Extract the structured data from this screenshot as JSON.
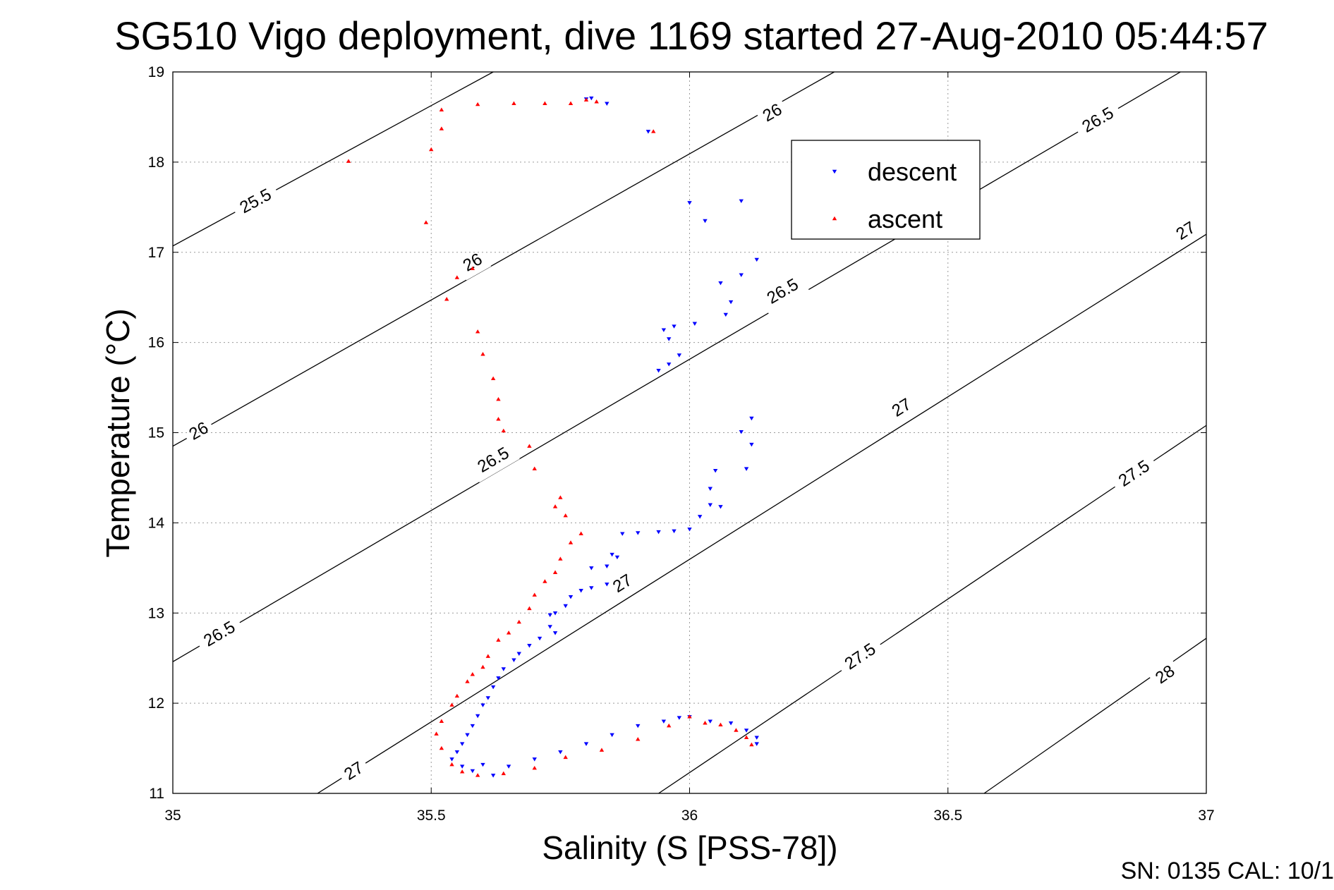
{
  "chart_data": {
    "type": "scatter",
    "title": "SG510 Vigo deployment, dive 1169 started 27-Aug-2010 05:44:57",
    "xlabel": "Salinity (S [PSS-78])",
    "ylabel": "Temperature (°C)",
    "xlim": [
      35,
      37
    ],
    "ylim": [
      11,
      19
    ],
    "xticks": [
      35,
      35.5,
      36,
      36.5,
      37
    ],
    "xtick_labels": [
      "35",
      "35.5",
      "36",
      "36.5",
      "37"
    ],
    "yticks": [
      11,
      12,
      13,
      14,
      15,
      16,
      17,
      18,
      19
    ],
    "ytick_labels": [
      "11",
      "12",
      "13",
      "14",
      "15",
      "16",
      "17",
      "18",
      "19"
    ],
    "grid": true,
    "legend_position": "top-right",
    "footer": "SN: 0135  CAL: 10/1",
    "colors": {
      "descent": "#0000ff",
      "ascent": "#ff0000",
      "contour": "#000000"
    },
    "series": [
      {
        "name": "descent",
        "marker": "triangle-down",
        "color": "#0000ff",
        "points": [
          [
            35.8,
            18.7
          ],
          [
            35.81,
            18.71
          ],
          [
            35.84,
            18.65
          ],
          [
            35.92,
            18.34
          ],
          [
            36.0,
            17.55
          ],
          [
            36.03,
            17.35
          ],
          [
            36.1,
            17.57
          ],
          [
            36.13,
            16.92
          ],
          [
            36.1,
            16.75
          ],
          [
            36.06,
            16.66
          ],
          [
            36.08,
            16.45
          ],
          [
            36.07,
            16.31
          ],
          [
            36.01,
            16.21
          ],
          [
            35.95,
            16.14
          ],
          [
            35.97,
            16.18
          ],
          [
            35.96,
            16.04
          ],
          [
            35.98,
            15.86
          ],
          [
            35.96,
            15.76
          ],
          [
            35.94,
            15.69
          ],
          [
            36.12,
            15.16
          ],
          [
            36.1,
            15.01
          ],
          [
            36.12,
            14.87
          ],
          [
            36.11,
            14.6
          ],
          [
            36.05,
            14.58
          ],
          [
            36.04,
            14.38
          ],
          [
            36.04,
            14.2
          ],
          [
            36.06,
            14.18
          ],
          [
            36.02,
            14.07
          ],
          [
            36.0,
            13.93
          ],
          [
            35.97,
            13.91
          ],
          [
            35.94,
            13.9
          ],
          [
            35.9,
            13.89
          ],
          [
            35.87,
            13.88
          ],
          [
            35.85,
            13.65
          ],
          [
            35.84,
            13.52
          ],
          [
            35.81,
            13.5
          ],
          [
            35.86,
            13.62
          ],
          [
            35.84,
            13.32
          ],
          [
            35.81,
            13.28
          ],
          [
            35.79,
            13.25
          ],
          [
            35.77,
            13.18
          ],
          [
            35.76,
            13.08
          ],
          [
            35.74,
            13.0
          ],
          [
            35.73,
            12.98
          ],
          [
            35.73,
            12.85
          ],
          [
            35.74,
            12.78
          ],
          [
            35.71,
            12.72
          ],
          [
            35.69,
            12.64
          ],
          [
            35.67,
            12.55
          ],
          [
            35.66,
            12.48
          ],
          [
            35.64,
            12.38
          ],
          [
            35.63,
            12.28
          ],
          [
            35.62,
            12.18
          ],
          [
            35.61,
            12.06
          ],
          [
            35.6,
            11.98
          ],
          [
            35.59,
            11.86
          ],
          [
            35.58,
            11.75
          ],
          [
            35.57,
            11.65
          ],
          [
            35.56,
            11.55
          ],
          [
            35.55,
            11.46
          ],
          [
            35.54,
            11.38
          ],
          [
            35.56,
            11.3
          ],
          [
            35.58,
            11.25
          ],
          [
            35.6,
            11.32
          ],
          [
            35.62,
            11.2
          ],
          [
            35.65,
            11.3
          ],
          [
            35.7,
            11.38
          ],
          [
            35.75,
            11.46
          ],
          [
            35.8,
            11.55
          ],
          [
            35.85,
            11.65
          ],
          [
            35.9,
            11.75
          ],
          [
            35.95,
            11.8
          ],
          [
            35.98,
            11.84
          ],
          [
            36.0,
            11.85
          ],
          [
            36.04,
            11.8
          ],
          [
            36.08,
            11.78
          ],
          [
            36.11,
            11.7
          ],
          [
            36.13,
            11.62
          ],
          [
            36.13,
            11.55
          ]
        ]
      },
      {
        "name": "ascent",
        "marker": "triangle-up",
        "color": "#ff0000",
        "points": [
          [
            35.82,
            18.67
          ],
          [
            35.8,
            18.69
          ],
          [
            35.77,
            18.65
          ],
          [
            35.72,
            18.65
          ],
          [
            35.66,
            18.65
          ],
          [
            35.59,
            18.64
          ],
          [
            35.52,
            18.58
          ],
          [
            35.52,
            18.37
          ],
          [
            35.5,
            18.14
          ],
          [
            35.34,
            18.01
          ],
          [
            35.93,
            18.34
          ],
          [
            35.49,
            17.33
          ],
          [
            35.58,
            16.82
          ],
          [
            35.55,
            16.72
          ],
          [
            35.53,
            16.48
          ],
          [
            35.59,
            16.12
          ],
          [
            35.6,
            15.87
          ],
          [
            35.62,
            15.6
          ],
          [
            35.63,
            15.37
          ],
          [
            35.63,
            15.15
          ],
          [
            35.64,
            15.02
          ],
          [
            35.69,
            14.85
          ],
          [
            35.7,
            14.6
          ],
          [
            35.75,
            14.28
          ],
          [
            35.74,
            14.18
          ],
          [
            35.76,
            14.08
          ],
          [
            35.79,
            13.88
          ],
          [
            35.77,
            13.78
          ],
          [
            35.75,
            13.6
          ],
          [
            35.74,
            13.45
          ],
          [
            35.72,
            13.35
          ],
          [
            35.7,
            13.2
          ],
          [
            35.69,
            13.05
          ],
          [
            35.67,
            12.9
          ],
          [
            35.65,
            12.78
          ],
          [
            35.63,
            12.7
          ],
          [
            35.61,
            12.52
          ],
          [
            35.6,
            12.4
          ],
          [
            35.58,
            12.32
          ],
          [
            35.57,
            12.24
          ],
          [
            35.55,
            12.08
          ],
          [
            35.54,
            11.98
          ],
          [
            35.52,
            11.8
          ],
          [
            35.51,
            11.66
          ],
          [
            35.52,
            11.5
          ],
          [
            35.54,
            11.32
          ],
          [
            35.56,
            11.24
          ],
          [
            35.59,
            11.2
          ],
          [
            35.64,
            11.22
          ],
          [
            35.7,
            11.28
          ],
          [
            35.76,
            11.4
          ],
          [
            35.83,
            11.48
          ],
          [
            35.9,
            11.6
          ],
          [
            35.96,
            11.75
          ],
          [
            36.0,
            11.85
          ],
          [
            36.03,
            11.78
          ],
          [
            36.06,
            11.76
          ],
          [
            36.09,
            11.7
          ],
          [
            36.11,
            11.62
          ],
          [
            36.12,
            11.54
          ]
        ]
      }
    ],
    "contours": [
      {
        "level": "25.5",
        "points": [
          [
            35.0,
            17.07
          ],
          [
            35.62,
            19.0
          ]
        ],
        "labels": [
          [
            35.16,
            17.57
          ]
        ]
      },
      {
        "level": "26",
        "points": [
          [
            35.0,
            14.85
          ],
          [
            36.28,
            19.0
          ]
        ],
        "labels": [
          [
            35.05,
            15.02
          ],
          [
            35.58,
            16.89
          ],
          [
            36.16,
            18.55
          ]
        ]
      },
      {
        "level": "26.5",
        "points": [
          [
            35.0,
            12.46
          ],
          [
            36.95,
            19.0
          ]
        ],
        "labels": [
          [
            35.09,
            12.77
          ],
          [
            35.62,
            14.7
          ],
          [
            36.18,
            16.57
          ],
          [
            36.79,
            18.47
          ]
        ]
      },
      {
        "level": "27",
        "points": [
          [
            35.28,
            11.0
          ],
          [
            37.0,
            17.2
          ]
        ],
        "labels": [
          [
            35.35,
            11.25
          ],
          [
            35.87,
            13.33
          ],
          [
            36.41,
            15.28
          ],
          [
            36.96,
            17.24
          ]
        ]
      },
      {
        "level": "27.5",
        "points": [
          [
            35.94,
            11.0
          ],
          [
            37.0,
            15.08
          ]
        ],
        "labels": [
          [
            36.33,
            12.52
          ],
          [
            36.86,
            14.55
          ]
        ]
      },
      {
        "level": "28",
        "points": [
          [
            36.57,
            11.0
          ],
          [
            37.0,
            12.72
          ]
        ],
        "labels": [
          [
            36.92,
            12.32
          ]
        ]
      }
    ]
  }
}
